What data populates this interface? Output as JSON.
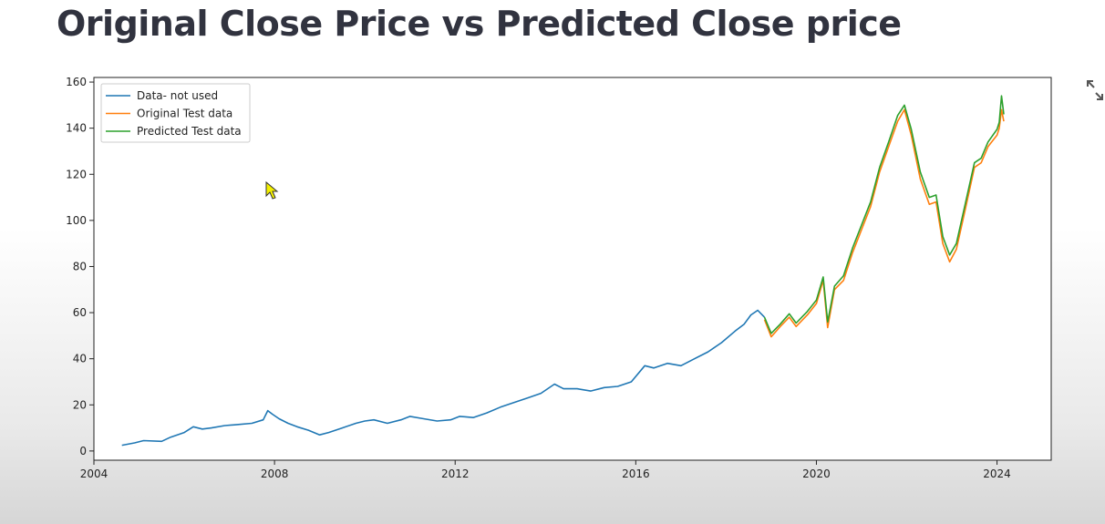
{
  "page": {
    "title": "Original Close Price vs Predicted Close price"
  },
  "toolbar": {
    "fullscreen_icon": "expand-arrows-icon"
  },
  "chart_data": {
    "type": "line",
    "title": "",
    "xlabel": "",
    "ylabel": "",
    "xlim": [
      2004.0,
      2025.2
    ],
    "ylim": [
      -4,
      162
    ],
    "x_ticks": [
      2004,
      2008,
      2012,
      2016,
      2020,
      2024
    ],
    "x_tick_labels": [
      "2004",
      "2008",
      "2012",
      "2016",
      "2020",
      "2024"
    ],
    "y_ticks": [
      0,
      20,
      40,
      60,
      80,
      100,
      120,
      140,
      160
    ],
    "y_tick_labels": [
      "0",
      "20",
      "40",
      "60",
      "80",
      "100",
      "120",
      "140",
      "160"
    ],
    "grid": false,
    "legend_position": "top-left",
    "series": [
      {
        "name": "Data- not used",
        "color": "#1f77b4",
        "x": [
          2004.62,
          2004.9,
          2005.1,
          2005.5,
          2005.7,
          2006.0,
          2006.2,
          2006.4,
          2006.6,
          2006.9,
          2007.2,
          2007.5,
          2007.75,
          2007.85,
          2007.95,
          2008.1,
          2008.3,
          2008.5,
          2008.75,
          2009.0,
          2009.2,
          2009.5,
          2009.8,
          2010.0,
          2010.2,
          2010.5,
          2010.8,
          2011.0,
          2011.3,
          2011.6,
          2011.9,
          2012.1,
          2012.4,
          2012.7,
          2013.0,
          2013.3,
          2013.6,
          2013.9,
          2014.2,
          2014.4,
          2014.7,
          2015.0,
          2015.3,
          2015.6,
          2015.9,
          2016.2,
          2016.4,
          2016.7,
          2017.0,
          2017.3,
          2017.6,
          2017.9,
          2018.2,
          2018.4,
          2018.55,
          2018.7,
          2018.85
        ],
        "y": [
          2.5,
          3.5,
          4.5,
          4.2,
          6.0,
          8.0,
          10.5,
          9.5,
          10.0,
          11.0,
          11.5,
          12.0,
          13.5,
          17.5,
          16.0,
          14.0,
          12.0,
          10.5,
          9.0,
          7.0,
          8.0,
          10.0,
          12.0,
          13.0,
          13.5,
          12.0,
          13.5,
          15.0,
          14.0,
          13.0,
          13.5,
          15.0,
          14.5,
          16.5,
          19.0,
          21.0,
          23.0,
          25.0,
          29.0,
          27.0,
          27.0,
          26.0,
          27.5,
          28.0,
          30.0,
          37.0,
          36.0,
          38.0,
          37.0,
          40.0,
          43.0,
          47.0,
          52.0,
          55.0,
          59.0,
          61.0,
          58.0
        ]
      },
      {
        "name": "Original Test data",
        "color": "#ff7f0e",
        "x": [
          2018.85,
          2019.0,
          2019.2,
          2019.4,
          2019.55,
          2019.8,
          2020.0,
          2020.15,
          2020.25,
          2020.4,
          2020.6,
          2020.8,
          2021.0,
          2021.2,
          2021.4,
          2021.6,
          2021.8,
          2021.95,
          2022.1,
          2022.3,
          2022.5,
          2022.65,
          2022.8,
          2022.95,
          2023.1,
          2023.3,
          2023.5,
          2023.65,
          2023.8,
          2024.0,
          2024.05,
          2024.1,
          2024.15
        ],
        "y": [
          57.0,
          49.5,
          54.0,
          58.0,
          54.0,
          59.0,
          64.0,
          74.0,
          53.5,
          70.0,
          74.0,
          86.0,
          96.0,
          106.0,
          121.0,
          132.0,
          143.0,
          148.0,
          137.0,
          118.0,
          107.0,
          108.0,
          90.0,
          82.0,
          87.5,
          105.0,
          123.0,
          125.0,
          132.0,
          137.0,
          140.0,
          148.0,
          143.0
        ]
      },
      {
        "name": "Predicted Test data",
        "color": "#2ca02c",
        "x": [
          2018.85,
          2019.0,
          2019.2,
          2019.4,
          2019.55,
          2019.8,
          2020.0,
          2020.15,
          2020.25,
          2020.4,
          2020.6,
          2020.8,
          2021.0,
          2021.2,
          2021.4,
          2021.6,
          2021.8,
          2021.95,
          2022.1,
          2022.3,
          2022.5,
          2022.65,
          2022.8,
          2022.95,
          2023.1,
          2023.3,
          2023.5,
          2023.65,
          2023.8,
          2024.0,
          2024.05,
          2024.1,
          2024.15
        ],
        "y": [
          58.0,
          51.0,
          55.0,
          59.5,
          55.5,
          60.5,
          65.5,
          75.5,
          56.0,
          71.5,
          76.0,
          88.0,
          98.0,
          108.0,
          123.0,
          134.0,
          145.5,
          150.0,
          139.5,
          121.0,
          110.0,
          111.0,
          93.0,
          85.0,
          90.0,
          107.5,
          125.0,
          127.0,
          134.0,
          139.5,
          142.5,
          154.0,
          146.0
        ]
      }
    ]
  }
}
